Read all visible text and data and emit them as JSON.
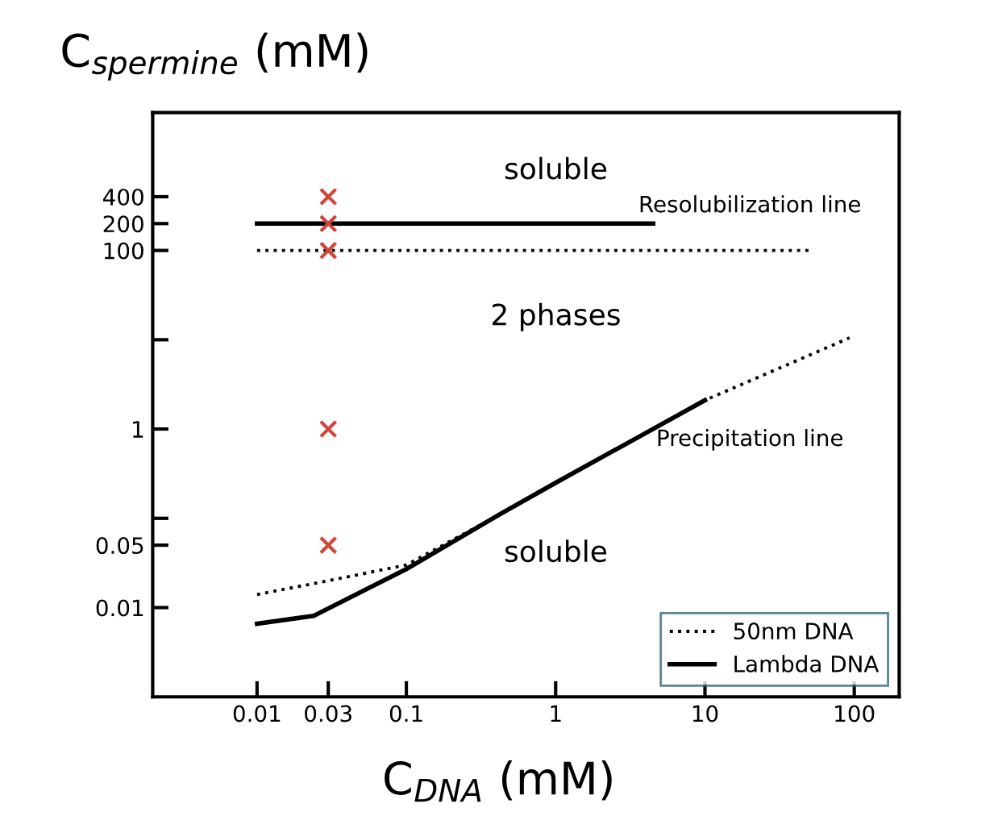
{
  "chart_data": {
    "type": "line",
    "xlabel": "C$_{DNA}$ (mM)",
    "ylabel": "C$_{spermine}$ (mM)",
    "log": "xy",
    "xlim": [
      0.002,
      200
    ],
    "xticks": [
      0.01,
      0.03,
      0.1,
      1,
      10,
      100
    ],
    "ylim": [
      0.001,
      3500
    ],
    "yticks": [
      0.01,
      0.05,
      {
        "value": 0.1,
        "label": null
      },
      1,
      {
        "value": 10,
        "label": null
      },
      100,
      200,
      400
    ],
    "grid": false,
    "legend": "bottom right",
    "series": [
      {
        "name": "50nm DNA",
        "color": "#000000",
        "line_style": "dotted",
        "x": [
          0.01,
          0.03,
          0.1,
          0.42,
          1,
          10,
          93
        ],
        "values": [
          0.014,
          0.02,
          0.03,
          0.11,
          0.25,
          2.1,
          10.5
        ]
      },
      {
        "name": "Lambda DNA",
        "color": "#000000",
        "line_style": "solid",
        "x": [
          0.01,
          0.024,
          0.1,
          0.42,
          1,
          10
        ],
        "values": [
          0.0066,
          0.0081,
          0.027,
          0.11,
          0.25,
          2.1
        ]
      },
      {
        "color": "#000000",
        "line_style": "dotted",
        "x": [
          0.01,
          50
        ],
        "values": [
          100,
          100
        ]
      },
      {
        "color": "#000000",
        "line_style": "solid",
        "x": [
          0.01,
          4.5
        ],
        "values": [
          200,
          200
        ]
      },
      {
        "type": "scatter",
        "marker": "cross",
        "color": "#d0453a",
        "x": [
          0.03,
          0.03,
          0.03,
          0.03,
          0.03
        ],
        "values": [
          400,
          200,
          100,
          1,
          0.05
        ]
      }
    ],
    "annotations": [
      "soluble",
      "Resolubilization line",
      "2 phases",
      "Precipitation line",
      "soluble"
    ]
  }
}
